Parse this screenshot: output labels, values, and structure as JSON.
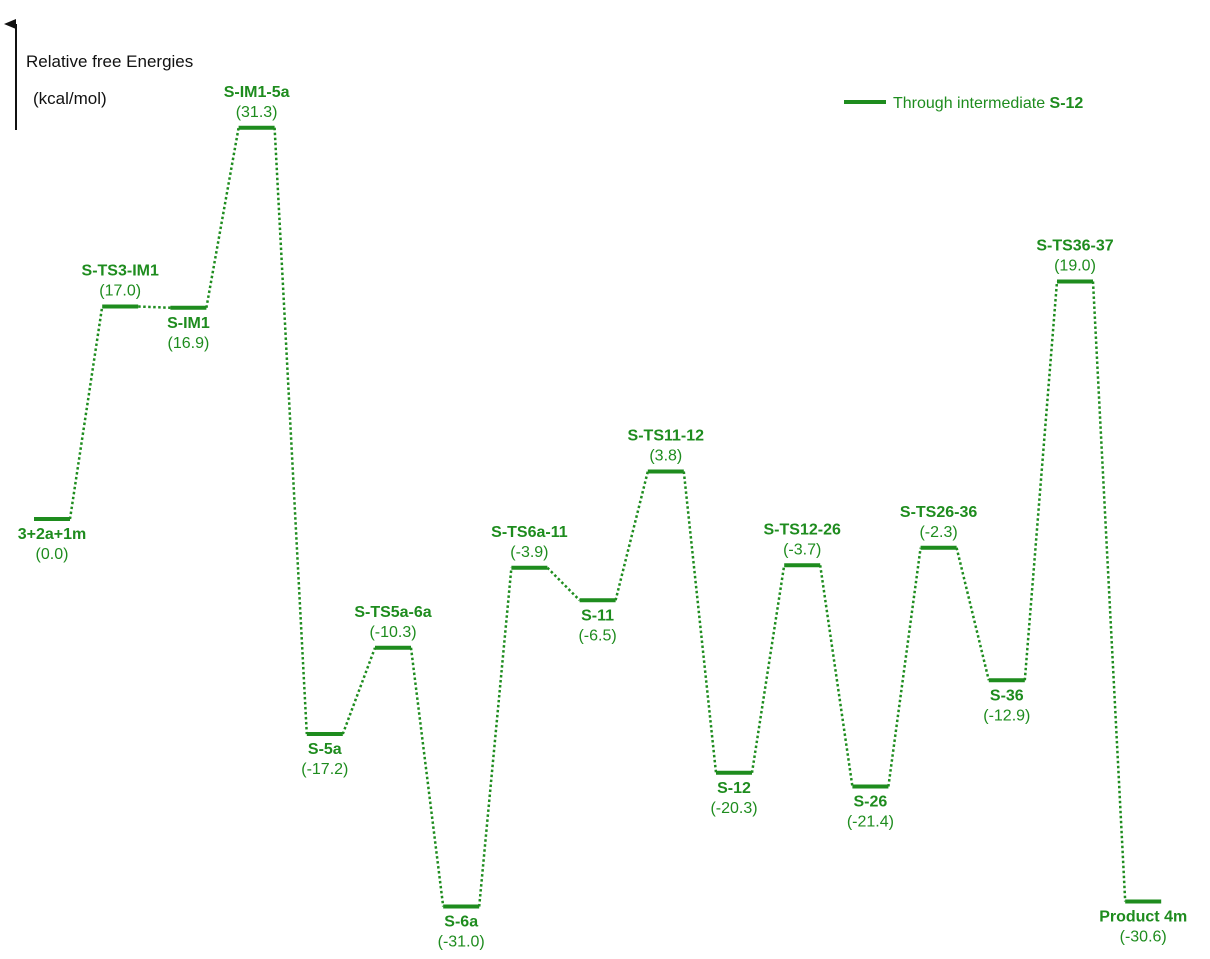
{
  "chart_data": {
    "type": "energy-profile",
    "ylabel_line1": "Relative free Energies",
    "ylabel_line2": "(kcal/mol)",
    "ylim": [
      -31.0,
      31.3
    ],
    "grid": false,
    "legend": {
      "placement": "top-right",
      "text": "Through intermediate ",
      "bold": "S-12"
    },
    "color": "#1e8c1e",
    "levels": [
      {
        "name": "3+2a+1m",
        "value": 0.0,
        "value_text": "(0.0)",
        "label_position": "below"
      },
      {
        "name": "S-TS3-IM1",
        "value": 17.0,
        "value_text": "(17.0)",
        "label_position": "above"
      },
      {
        "name": "S-IM1",
        "value": 16.9,
        "value_text": "(16.9)",
        "label_position": "below"
      },
      {
        "name": "S-IM1-5a",
        "value": 31.3,
        "value_text": "(31.3)",
        "label_position": "above"
      },
      {
        "name": "S-5a",
        "value": -17.2,
        "value_text": "(-17.2)",
        "label_position": "below"
      },
      {
        "name": "S-TS5a-6a",
        "value": -10.3,
        "value_text": "(-10.3)",
        "label_position": "above"
      },
      {
        "name": "S-6a",
        "value": -31.0,
        "value_text": "(-31.0)",
        "label_position": "below"
      },
      {
        "name": "S-TS6a-11",
        "value": -3.9,
        "value_text": "(-3.9)",
        "label_position": "above"
      },
      {
        "name": "S-11",
        "value": -6.5,
        "value_text": "(-6.5)",
        "label_position": "below"
      },
      {
        "name": "S-TS11-12",
        "value": 3.8,
        "value_text": "(3.8)",
        "label_position": "above"
      },
      {
        "name": "S-12",
        "value": -20.3,
        "value_text": "(-20.3)",
        "label_position": "below"
      },
      {
        "name": "S-TS12-26",
        "value": -3.7,
        "value_text": "(-3.7)",
        "label_position": "above"
      },
      {
        "name": "S-26",
        "value": -21.4,
        "value_text": "(-21.4)",
        "label_position": "below"
      },
      {
        "name": "S-TS26-36",
        "value": -2.3,
        "value_text": "(-2.3)",
        "label_position": "above"
      },
      {
        "name": "S-36",
        "value": -12.9,
        "value_text": "(-12.9)",
        "label_position": "below"
      },
      {
        "name": "S-TS36-37",
        "value": 19.0,
        "value_text": "(19.0)",
        "label_position": "above"
      },
      {
        "name": "Product 4m",
        "value": -30.6,
        "value_text": "(-30.6)",
        "label_position": "below"
      }
    ]
  }
}
